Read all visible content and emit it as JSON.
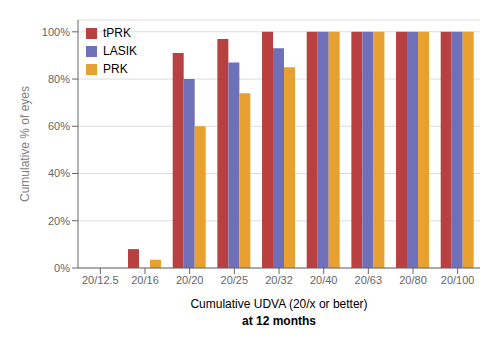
{
  "chart_data": {
    "type": "bar",
    "categories": [
      "20/12.5",
      "20/16",
      "20/20",
      "20/25",
      "20/32",
      "20/40",
      "20/63",
      "20/80",
      "20/100"
    ],
    "series": [
      {
        "name": "tPRK",
        "color": "#b94040",
        "values": [
          0,
          8,
          91,
          97,
          100,
          100,
          100,
          100,
          100
        ]
      },
      {
        "name": "LASIK",
        "color": "#7070b8",
        "values": [
          0,
          0,
          80,
          87,
          93,
          100,
          100,
          100,
          100
        ]
      },
      {
        "name": "PRK",
        "color": "#e8a030",
        "values": [
          0,
          3.5,
          60,
          74,
          85,
          100,
          100,
          100,
          100
        ]
      }
    ],
    "y_label": "Cumulative % of eyes",
    "x_label": [
      "Cumulative UDVA (20/x or better)",
      "at 12 months"
    ],
    "ylim": [
      0,
      105
    ],
    "yticks": [
      {
        "value": 0,
        "label": "0%"
      },
      {
        "value": 20,
        "label": "20%"
      },
      {
        "value": 40,
        "label": "40%"
      },
      {
        "value": 60,
        "label": "60%"
      },
      {
        "value": 80,
        "label": "80%"
      },
      {
        "value": 100,
        "label": "100%"
      }
    ],
    "grid": true,
    "legend": "upper left"
  }
}
